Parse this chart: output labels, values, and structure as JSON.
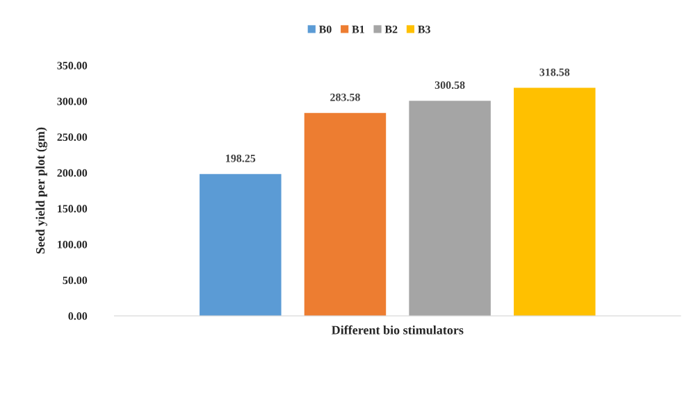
{
  "chart_data": {
    "type": "bar",
    "categories": [
      null
    ],
    "series": [
      {
        "name": "B0",
        "color": "#5b9bd5",
        "values": [
          198.25
        ]
      },
      {
        "name": "B1",
        "color": "#ed7d31",
        "values": [
          283.58
        ]
      },
      {
        "name": "B2",
        "color": "#a5a5a5",
        "values": [
          300.58
        ]
      },
      {
        "name": "B3",
        "color": "#ffc000",
        "values": [
          318.58
        ]
      }
    ],
    "xlabel": "Different bio stimulators",
    "ylabel": "Seed yield per plot (gm)",
    "ylim": [
      0,
      350
    ],
    "yticks": [
      {
        "value": 0,
        "label": "0.00"
      },
      {
        "value": 50,
        "label": "50.00"
      },
      {
        "value": 100,
        "label": "100.00"
      },
      {
        "value": 150,
        "label": "150.00"
      },
      {
        "value": 200,
        "label": "200.00"
      },
      {
        "value": 250,
        "label": "250.00"
      },
      {
        "value": 300,
        "label": "300.00"
      },
      {
        "value": 350,
        "label": "350.00"
      }
    ],
    "data_labels": true,
    "legend": "top",
    "grid": false
  }
}
